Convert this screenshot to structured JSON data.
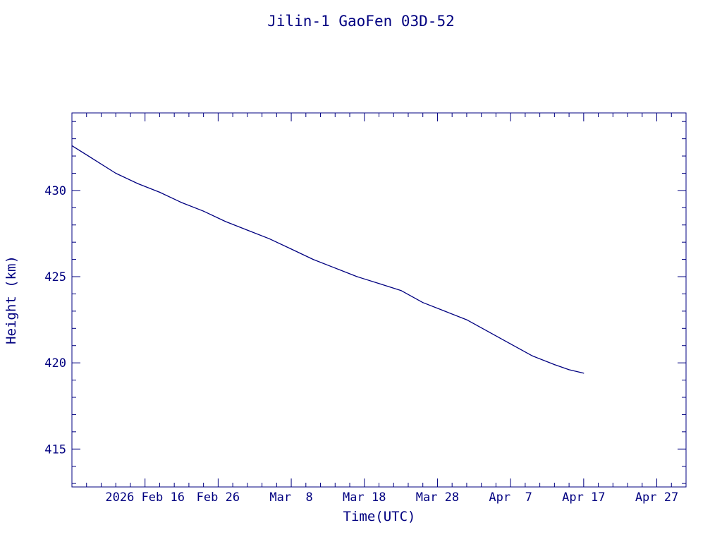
{
  "chart_data": {
    "type": "line",
    "title": "Jilin-1 GaoFen 03D-52",
    "xlabel": "Time(UTC)",
    "ylabel": "Height (km)",
    "x_axis_type": "date",
    "xlim": [
      "2026-02-06",
      "2026-05-01"
    ],
    "ylim": [
      412.8,
      434.5
    ],
    "x_ticks": [
      {
        "date": "2026-02-16",
        "label": "2026 Feb 16"
      },
      {
        "date": "2026-02-26",
        "label": "Feb 26"
      },
      {
        "date": "2026-03-08",
        "label": "Mar  8"
      },
      {
        "date": "2026-03-18",
        "label": "Mar 18"
      },
      {
        "date": "2026-03-28",
        "label": "Mar 28"
      },
      {
        "date": "2026-04-07",
        "label": "Apr  7"
      },
      {
        "date": "2026-04-17",
        "label": "Apr 17"
      },
      {
        "date": "2026-04-27",
        "label": "Apr 27"
      }
    ],
    "y_ticks": [
      415,
      420,
      425,
      430
    ],
    "grid": false,
    "color": "#000080",
    "series": [
      {
        "name": "",
        "points": [
          {
            "x": "2026-02-06",
            "y": 432.6
          },
          {
            "x": "2026-02-09",
            "y": 431.8
          },
          {
            "x": "2026-02-12",
            "y": 431.0
          },
          {
            "x": "2026-02-15",
            "y": 430.4
          },
          {
            "x": "2026-02-18",
            "y": 429.9
          },
          {
            "x": "2026-02-21",
            "y": 429.3
          },
          {
            "x": "2026-02-24",
            "y": 428.8
          },
          {
            "x": "2026-02-27",
            "y": 428.2
          },
          {
            "x": "2026-03-02",
            "y": 427.7
          },
          {
            "x": "2026-03-05",
            "y": 427.2
          },
          {
            "x": "2026-03-08",
            "y": 426.6
          },
          {
            "x": "2026-03-11",
            "y": 426.0
          },
          {
            "x": "2026-03-14",
            "y": 425.5
          },
          {
            "x": "2026-03-17",
            "y": 425.0
          },
          {
            "x": "2026-03-20",
            "y": 424.6
          },
          {
            "x": "2026-03-23",
            "y": 424.2
          },
          {
            "x": "2026-03-26",
            "y": 423.5
          },
          {
            "x": "2026-03-29",
            "y": 423.0
          },
          {
            "x": "2026-04-01",
            "y": 422.5
          },
          {
            "x": "2026-04-04",
            "y": 421.8
          },
          {
            "x": "2026-04-07",
            "y": 421.1
          },
          {
            "x": "2026-04-10",
            "y": 420.4
          },
          {
            "x": "2026-04-13",
            "y": 419.9
          },
          {
            "x": "2026-04-15",
            "y": 419.6
          },
          {
            "x": "2026-04-17",
            "y": 419.4
          }
        ]
      }
    ]
  }
}
